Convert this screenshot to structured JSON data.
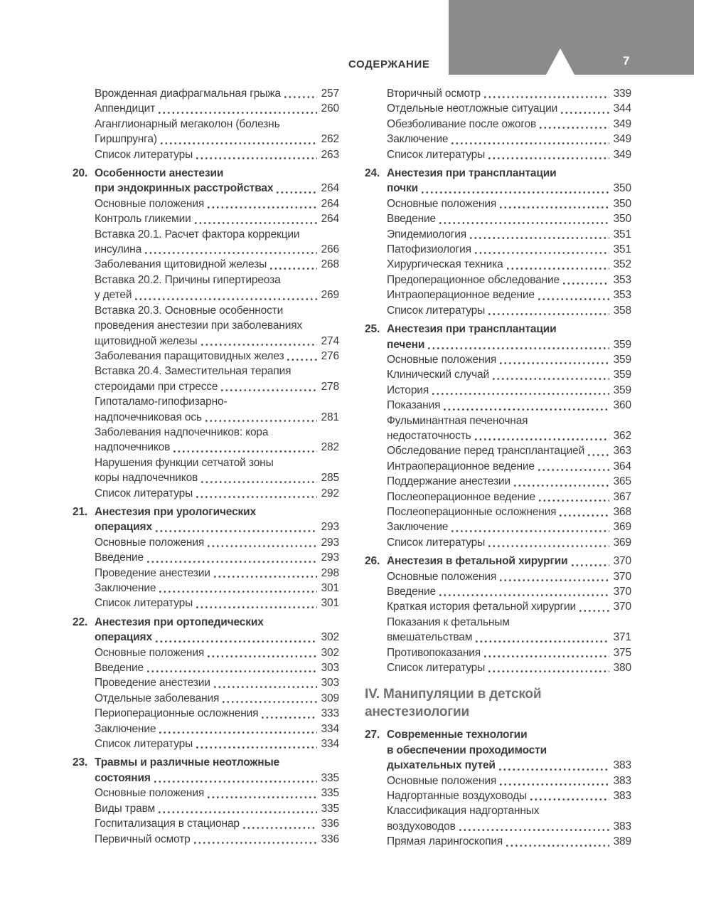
{
  "header": {
    "title": "СОДЕРЖАНИЕ",
    "page_number": "7"
  },
  "colors": {
    "tab_gray": "#8a8b8d",
    "text": "#3b3b3d",
    "part_header_gray": "#6f7073"
  },
  "toc": {
    "left_column": [
      {
        "lines": [
          "Врожденная диафрагмальная грыжа"
        ],
        "page": "257"
      },
      {
        "lines": [
          "Аппендицит"
        ],
        "page": "260"
      },
      {
        "lines": [
          "Аганглионарный мегаколон (болезнь",
          "Гиршпрунга)"
        ],
        "page": "262"
      },
      {
        "lines": [
          "Список литературы"
        ],
        "page": "263"
      },
      {
        "number": "20.",
        "bold": true,
        "lines": [
          "Особенности анестезии",
          "при эндокринных расстройствах"
        ],
        "page": "264"
      },
      {
        "lines": [
          "Основные положения"
        ],
        "page": "264"
      },
      {
        "lines": [
          "Контроль гликемии"
        ],
        "page": "264"
      },
      {
        "lines": [
          "Вставка 20.1. Расчет фактора коррекции",
          "инсулина"
        ],
        "page": "266"
      },
      {
        "lines": [
          "Заболевания щитовидной железы"
        ],
        "page": "268"
      },
      {
        "lines": [
          "Вставка 20.2. Причины гипертиреоза",
          "у детей"
        ],
        "page": "269"
      },
      {
        "lines": [
          "Вставка 20.3. Основные особенности",
          "проведения анестезии при заболеваниях",
          "щитовидной железы"
        ],
        "page": "274"
      },
      {
        "lines": [
          "Заболевания паращитовидных желез"
        ],
        "page": "276"
      },
      {
        "lines": [
          "Вставка 20.4. Заместительная терапия",
          "стероидами при стрессе"
        ],
        "page": "278"
      },
      {
        "lines": [
          "Гипоталамо-гипофизарно-",
          "надпочечниковая ось"
        ],
        "page": "281"
      },
      {
        "lines": [
          "Заболевания надпочечников: кора",
          "надпочечников"
        ],
        "page": "282"
      },
      {
        "lines": [
          "Нарушения функции сетчатой зоны",
          "коры надпочечников"
        ],
        "page": "285"
      },
      {
        "lines": [
          "Список литературы"
        ],
        "page": "292"
      },
      {
        "number": "21.",
        "bold": true,
        "lines": [
          "Анестезия при урологических",
          "операциях"
        ],
        "page": "293"
      },
      {
        "lines": [
          "Основные положения"
        ],
        "page": "293"
      },
      {
        "lines": [
          "Введение"
        ],
        "page": "293"
      },
      {
        "lines": [
          "Проведение анестезии"
        ],
        "page": "298"
      },
      {
        "lines": [
          "Заключение"
        ],
        "page": "301"
      },
      {
        "lines": [
          "Список литературы"
        ],
        "page": "301"
      },
      {
        "number": "22.",
        "bold": true,
        "lines": [
          "Анестезия при ортопедических",
          "операциях"
        ],
        "page": "302"
      },
      {
        "lines": [
          "Основные положения"
        ],
        "page": "302"
      },
      {
        "lines": [
          "Введение"
        ],
        "page": "303"
      },
      {
        "lines": [
          "Проведение анестезии"
        ],
        "page": "303"
      },
      {
        "lines": [
          "Отдельные заболевания"
        ],
        "page": "309"
      },
      {
        "lines": [
          "Периоперационные осложнения"
        ],
        "page": "333"
      },
      {
        "lines": [
          "Заключение"
        ],
        "page": "334"
      },
      {
        "lines": [
          "Список литературы"
        ],
        "page": "334"
      },
      {
        "number": "23.",
        "bold": true,
        "lines": [
          "Травмы и различные неотложные",
          "состояния"
        ],
        "page": "335"
      },
      {
        "lines": [
          "Основные положения"
        ],
        "page": "335"
      },
      {
        "lines": [
          "Виды травм"
        ],
        "page": "335"
      },
      {
        "lines": [
          "Госпитализация в стационар"
        ],
        "page": "336"
      },
      {
        "lines": [
          "Первичный осмотр"
        ],
        "page": "336"
      }
    ],
    "right_column": [
      {
        "lines": [
          "Вторичный осмотр"
        ],
        "page": "339"
      },
      {
        "lines": [
          "Отдельные неотложные ситуации"
        ],
        "page": "344"
      },
      {
        "lines": [
          "Обезболивание после ожогов"
        ],
        "page": "349"
      },
      {
        "lines": [
          "Заключение"
        ],
        "page": "349"
      },
      {
        "lines": [
          "Список литературы"
        ],
        "page": "349"
      },
      {
        "number": "24.",
        "bold": true,
        "lines": [
          "Анестезия при трансплантации",
          "почки"
        ],
        "page": "350"
      },
      {
        "lines": [
          "Основные положения"
        ],
        "page": "350"
      },
      {
        "lines": [
          "Введение"
        ],
        "page": "350"
      },
      {
        "lines": [
          "Эпидемиология"
        ],
        "page": "351"
      },
      {
        "lines": [
          "Патофизиология"
        ],
        "page": "351"
      },
      {
        "lines": [
          "Хирургическая техника"
        ],
        "page": "352"
      },
      {
        "lines": [
          "Предоперационное обследование"
        ],
        "page": "353"
      },
      {
        "lines": [
          "Интраоперационное ведение"
        ],
        "page": "353"
      },
      {
        "lines": [
          "Список литературы"
        ],
        "page": "358"
      },
      {
        "number": "25.",
        "bold": true,
        "lines": [
          "Анестезия при трансплантации",
          "печени"
        ],
        "page": "359"
      },
      {
        "lines": [
          "Основные положения"
        ],
        "page": "359"
      },
      {
        "lines": [
          "Клинический случай"
        ],
        "page": "359"
      },
      {
        "lines": [
          "История"
        ],
        "page": "359"
      },
      {
        "lines": [
          "Показания"
        ],
        "page": "360"
      },
      {
        "lines": [
          "Фульминантная печеночная",
          "недостаточность"
        ],
        "page": "362"
      },
      {
        "lines": [
          "Обследование перед трансплантацией"
        ],
        "page": "363"
      },
      {
        "lines": [
          "Интраоперационное ведение"
        ],
        "page": "364"
      },
      {
        "lines": [
          "Поддержание анестезии"
        ],
        "page": "365"
      },
      {
        "lines": [
          "Послеоперационное ведение"
        ],
        "page": "367"
      },
      {
        "lines": [
          "Послеоперационные осложнения"
        ],
        "page": "368"
      },
      {
        "lines": [
          "Заключение"
        ],
        "page": "369"
      },
      {
        "lines": [
          "Список литературы"
        ],
        "page": "369"
      },
      {
        "number": "26.",
        "bold": true,
        "lines": [
          "Анестезия в фетальной хирургии"
        ],
        "page": "370"
      },
      {
        "lines": [
          "Основные положения"
        ],
        "page": "370"
      },
      {
        "lines": [
          "Введение"
        ],
        "page": "370"
      },
      {
        "lines": [
          "Краткая история фетальной хирургии"
        ],
        "page": "370"
      },
      {
        "lines": [
          "Показания к фетальным",
          "вмешательствам"
        ],
        "page": "371"
      },
      {
        "lines": [
          "Противопоказания"
        ],
        "page": "375"
      },
      {
        "lines": [
          "Список литературы"
        ],
        "page": "380"
      },
      {
        "type": "part",
        "lines": [
          "IV. Манипуляции в детской",
          "анестезиологии"
        ]
      },
      {
        "number": "27.",
        "bold": true,
        "lines": [
          "Современные технологии",
          "в обеспечении проходимости",
          "дыхательных путей"
        ],
        "page": "383"
      },
      {
        "lines": [
          "Основные положения"
        ],
        "page": "383"
      },
      {
        "lines": [
          "Надгортанные воздуховоды"
        ],
        "page": "383"
      },
      {
        "lines": [
          "Классификация надгортанных",
          "воздуховодов"
        ],
        "page": "383"
      },
      {
        "lines": [
          "Прямая ларингоскопия"
        ],
        "page": "389"
      }
    ]
  }
}
